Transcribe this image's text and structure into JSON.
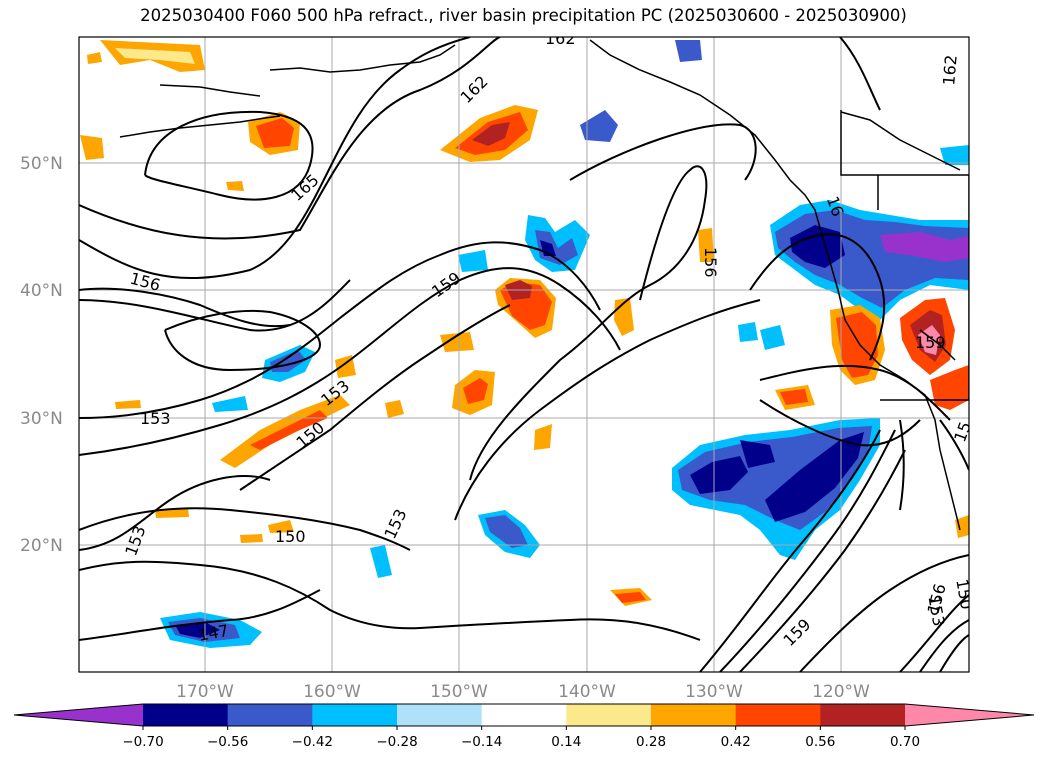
{
  "title": "2025030400 F060 500 hPa refract., river basin precipitation PC (2025030600 - 2025030900)",
  "map": {
    "lat_labels": [
      "50°N",
      "40°N",
      "30°N",
      "20°N"
    ],
    "lon_labels": [
      "170°W",
      "160°W",
      "150°W",
      "140°W",
      "130°W",
      "120°W"
    ],
    "contour_labels": [
      "162",
      "162",
      "165",
      "156",
      "159",
      "156",
      "159",
      "153",
      "150",
      "153",
      "153",
      "150",
      "153",
      "147",
      "159",
      "156",
      "153",
      "150",
      "16",
      "159",
      "15",
      "162"
    ]
  },
  "colorbar": {
    "tick_labels": [
      "−0.70",
      "−0.56",
      "−0.42",
      "−0.28",
      "−0.14",
      "0.14",
      "0.28",
      "0.42",
      "0.56",
      "0.70"
    ],
    "colors": [
      "#9932cc",
      "#00008b",
      "#3a5acb",
      "#00bfff",
      "#afe1fb",
      "#ffffff",
      "#fbe98c",
      "#ffa500",
      "#ff4500",
      "#b22222",
      "#ff88aa"
    ]
  }
}
